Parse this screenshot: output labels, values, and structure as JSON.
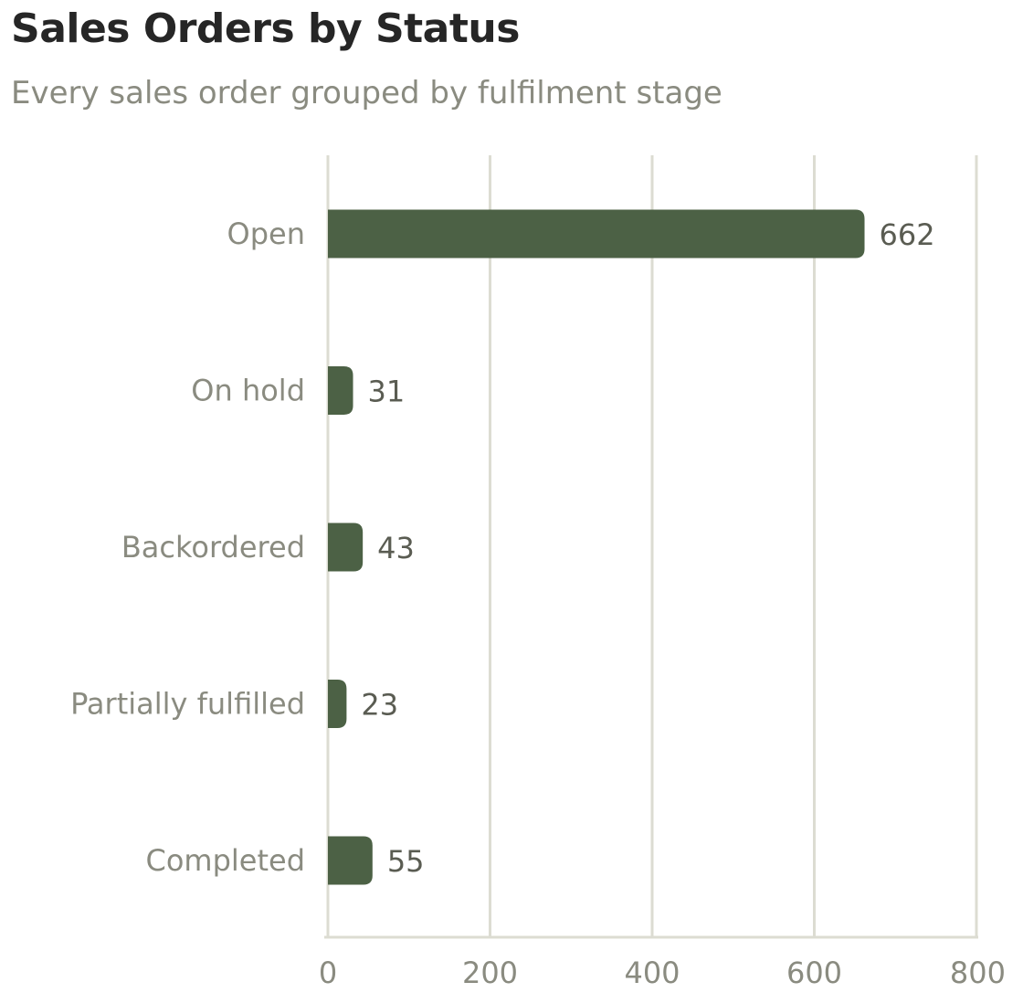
{
  "chart_data": {
    "type": "bar",
    "orientation": "horizontal",
    "title": "Sales Orders by Status",
    "subtitle": "Every sales order grouped by fulfilment stage",
    "categories": [
      "Open",
      "On hold",
      "Backordered",
      "Partially fulfilled",
      "Completed"
    ],
    "values": [
      662,
      31,
      43,
      23,
      55
    ],
    "xlim": [
      0,
      800
    ],
    "xticks": [
      0,
      200,
      400,
      600,
      800
    ],
    "xlabel": "",
    "ylabel": "",
    "grid": "vertical",
    "legend": "none",
    "bar_color": "#4c6145",
    "grid_color": "#dcdcd2"
  }
}
